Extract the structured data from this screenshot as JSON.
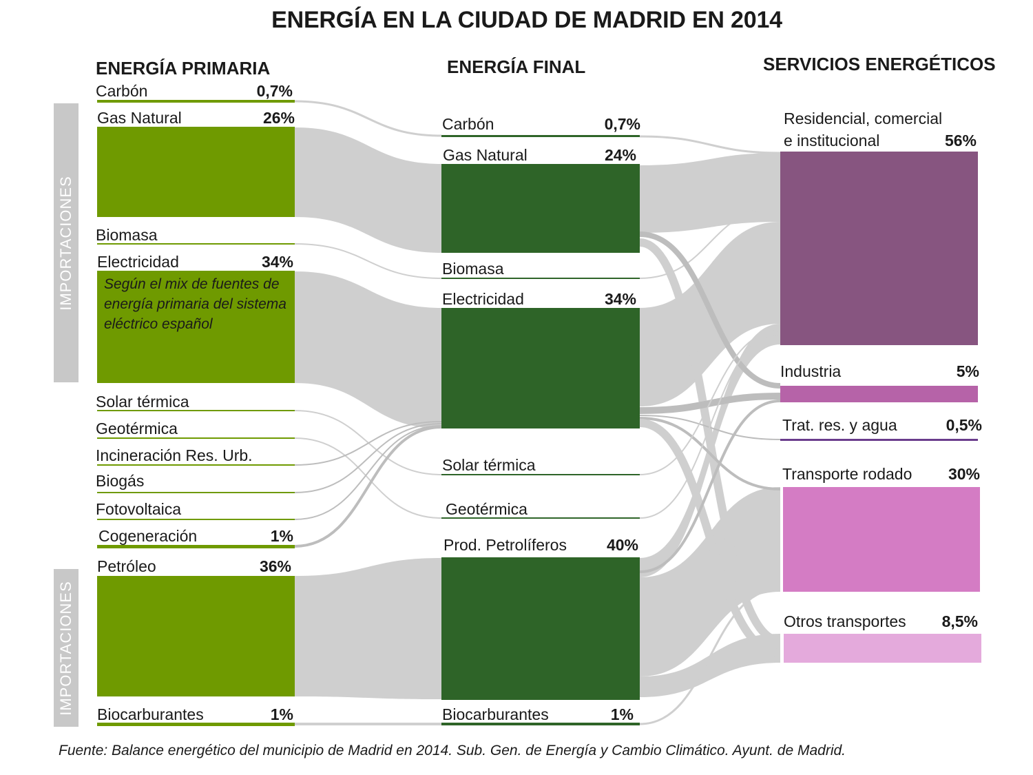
{
  "title": "ENERGÍA EN LA CIUDAD DE MADRID EN 2014",
  "columns": {
    "primary": "ENERGÍA PRIMARIA",
    "final": "ENERGÍA FINAL",
    "services": "SERVICIOS ENERGÉTICOS"
  },
  "side_labels": {
    "top": "IMPORTACIONES",
    "bottom": "IMPORTACIONES"
  },
  "primary": {
    "carbon": {
      "label": "Carbón",
      "pct": "0,7%"
    },
    "gas": {
      "label": "Gas Natural",
      "pct": "26%"
    },
    "biomasa": {
      "label": "Biomasa",
      "pct": ""
    },
    "electricidad": {
      "label": "Electricidad",
      "pct": "34%",
      "note": "Según el mix de fuentes de energía primaria del sistema eléctrico español"
    },
    "solar": {
      "label": "Solar térmica",
      "pct": ""
    },
    "geotermica": {
      "label": "Geotérmica",
      "pct": ""
    },
    "incineracion": {
      "label": "Incineración Res. Urb.",
      "pct": ""
    },
    "biogas": {
      "label": "Biogás",
      "pct": ""
    },
    "fotovoltaica": {
      "label": "Fotovoltaica",
      "pct": ""
    },
    "cogeneracion": {
      "label": "Cogeneración",
      "pct": "1%"
    },
    "petroleo": {
      "label": "Petróleo",
      "pct": "36%"
    },
    "biocarburantes": {
      "label": "Biocarburantes",
      "pct": "1%"
    }
  },
  "final": {
    "carbon": {
      "label": "Carbón",
      "pct": "0,7%"
    },
    "gas": {
      "label": "Gas Natural",
      "pct": "24%"
    },
    "biomasa": {
      "label": "Biomasa",
      "pct": ""
    },
    "electricidad": {
      "label": "Electricidad",
      "pct": "34%"
    },
    "solar": {
      "label": "Solar térmica",
      "pct": ""
    },
    "geotermica": {
      "label": "Geotérmica",
      "pct": ""
    },
    "petroliferos": {
      "label": "Prod. Petrolíferos",
      "pct": "40%"
    },
    "biocarburantes": {
      "label": "Biocarburantes",
      "pct": "1%"
    }
  },
  "services": {
    "residencial": {
      "label_line1": "Residencial, comercial",
      "label_line2": "e institucional",
      "pct": "56%"
    },
    "industria": {
      "label": "Industria",
      "pct": "5%"
    },
    "tratamiento": {
      "label": "Trat. res. y agua",
      "pct": "0,5%"
    },
    "transporte_rodado": {
      "label": "Transporte rodado",
      "pct": "30%"
    },
    "otros_transportes": {
      "label": "Otros transportes",
      "pct": "8,5%"
    }
  },
  "colors": {
    "primary_node": "#6f9a00",
    "final_node": "#2e6428",
    "flow": "#cfcfcf",
    "flow_thin": "#bdbdbd",
    "residencial": "#875580",
    "industria": "#b663a8",
    "tratamiento": "#6a3c8c",
    "transporte_rodado": "#d47cc4",
    "otros_transportes": "#e4aadc",
    "side_bar": "#c8c8c8"
  },
  "source": "Fuente: Balance energético del municipio de Madrid en 2014. Sub. Gen. de Energía y Cambio Climático. Ayunt. de Madrid."
}
